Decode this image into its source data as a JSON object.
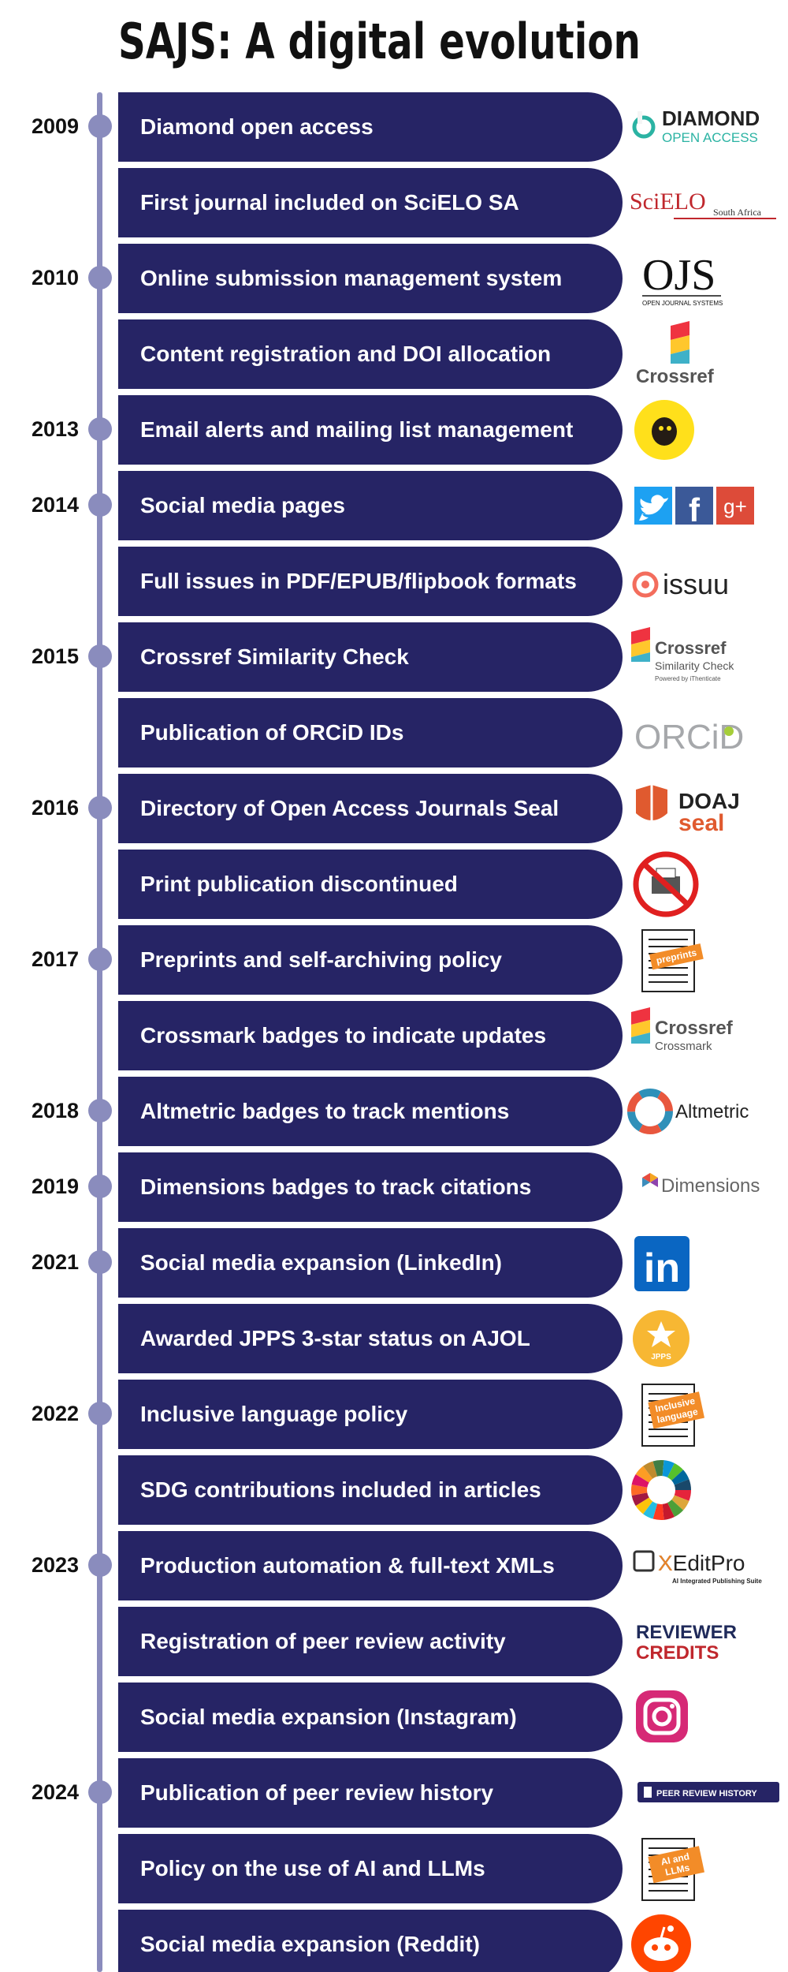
{
  "title": "SAJS: A digital evolution",
  "colors": {
    "bar": "#262465",
    "timeline": "#8a8cbd",
    "text": "#111111"
  },
  "milestones": [
    {
      "year": "2009",
      "label": "Diamond open access",
      "logo": "diamond-open-access-logo",
      "logo_text": [
        "DIAMOND",
        "OPEN ACCESS"
      ]
    },
    {
      "year": "",
      "label": "First journal included on SciELO SA",
      "logo": "scielo-logo",
      "logo_text": [
        "SciELO",
        "South Africa"
      ]
    },
    {
      "year": "2010",
      "label": "Online submission management system",
      "logo": "ojs-logo",
      "logo_text": [
        "OJS",
        "OPEN JOURNAL SYSTEMS"
      ]
    },
    {
      "year": "",
      "label": "Content registration and DOI allocation",
      "logo": "crossref-logo",
      "logo_text": [
        "Crossref"
      ]
    },
    {
      "year": "2013",
      "label": "Email alerts and mailing list management",
      "logo": "mailchimp-logo",
      "logo_text": []
    },
    {
      "year": "2014",
      "label": "Social media pages",
      "logo": "social-icons-logo",
      "logo_text": [
        "f",
        "g+"
      ]
    },
    {
      "year": "",
      "label": "Full issues in PDF/EPUB/flipbook formats",
      "logo": "issuu-logo",
      "logo_text": [
        "issuu"
      ]
    },
    {
      "year": "2015",
      "label": "Crossref Similarity Check",
      "logo": "crossref-similarity-logo",
      "logo_text": [
        "Crossref",
        "Similarity Check",
        "Powered by iThenticate"
      ]
    },
    {
      "year": "",
      "label": "Publication of ORCiD IDs",
      "logo": "orcid-logo",
      "logo_text": [
        "ORCiD"
      ]
    },
    {
      "year": "2016",
      "label": "Directory of Open Access Journals Seal",
      "logo": "doaj-seal-logo",
      "logo_text": [
        "DOAJ",
        "seal"
      ]
    },
    {
      "year": "",
      "label": "Print publication discontinued",
      "logo": "no-print-icon",
      "logo_text": []
    },
    {
      "year": "2017",
      "label": "Preprints and self-archiving policy",
      "logo": "preprints-document-icon",
      "logo_text": [
        "preprints"
      ]
    },
    {
      "year": "",
      "label": "Crossmark badges to indicate updates",
      "logo": "crossmark-logo",
      "logo_text": [
        "Crossref",
        "Crossmark"
      ]
    },
    {
      "year": "2018",
      "label": "Altmetric badges to track mentions",
      "logo": "altmetric-logo",
      "logo_text": [
        "Altmetric"
      ]
    },
    {
      "year": "2019",
      "label": "Dimensions badges to track citations",
      "logo": "dimensions-logo",
      "logo_text": [
        "Dimensions"
      ]
    },
    {
      "year": "2021",
      "label": "Social media expansion (LinkedIn)",
      "logo": "linkedin-logo",
      "logo_text": [
        "in"
      ]
    },
    {
      "year": "",
      "label": "Awarded JPPS 3-star status on AJOL",
      "logo": "jpps-badge-logo",
      "logo_text": [
        "JPPS"
      ]
    },
    {
      "year": "2022",
      "label": "Inclusive language policy",
      "logo": "inclusive-language-document-icon",
      "logo_text": [
        "Inclusive",
        "language"
      ]
    },
    {
      "year": "",
      "label": "SDG contributions included in articles",
      "logo": "sdg-wheel-logo",
      "logo_text": []
    },
    {
      "year": "2023",
      "label": "Production automation & full-text XMLs",
      "logo": "xeditpro-logo",
      "logo_text": [
        "XEditPro",
        "AI Integrated Publishing Suite"
      ]
    },
    {
      "year": "",
      "label": "Registration of peer review activity",
      "logo": "reviewer-credits-logo",
      "logo_text": [
        "REVIEWER",
        "CREDITS"
      ]
    },
    {
      "year": "",
      "label": "Social media expansion (Instagram)",
      "logo": "instagram-logo",
      "logo_text": []
    },
    {
      "year": "2024",
      "label": "Publication of peer review history",
      "logo": "peer-review-history-badge",
      "logo_text": [
        "PEER REVIEW HISTORY"
      ]
    },
    {
      "year": "",
      "label": "Policy on the use of AI and LLMs",
      "logo": "ai-llms-document-icon",
      "logo_text": [
        "AI and",
        "LLMs"
      ]
    },
    {
      "year": "",
      "label": "Social media expansion (Reddit)",
      "logo": "reddit-logo",
      "logo_text": []
    }
  ]
}
